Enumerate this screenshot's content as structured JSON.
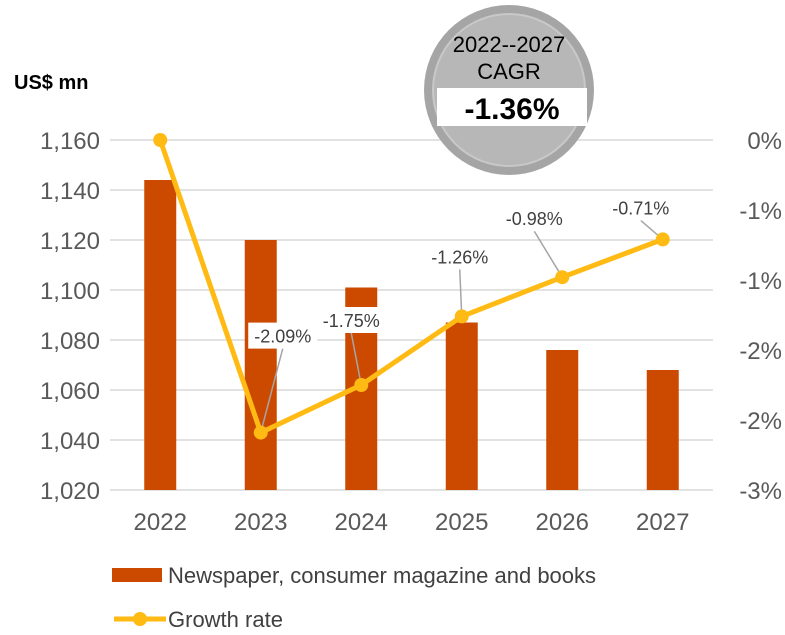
{
  "chart_data": {
    "type": "bar",
    "categories": [
      "2022",
      "2023",
      "2024",
      "2025",
      "2026",
      "2027"
    ],
    "series": [
      {
        "name": "Newspaper, consumer magazine and books",
        "type": "bar",
        "axis": "left",
        "values": [
          1144,
          1120,
          1101,
          1087,
          1076,
          1068
        ]
      },
      {
        "name": "Growth rate",
        "type": "line",
        "axis": "right",
        "values": [
          0,
          -2.09,
          -1.75,
          -1.26,
          -0.98,
          -0.71
        ],
        "data_labels": [
          "",
          "-2.09%",
          "-1.75%",
          "-1.26%",
          "-0.98%",
          "-0.71%"
        ]
      }
    ],
    "ylabel": "US$ mn",
    "ylim": [
      1020,
      1160
    ],
    "yticks": [
      "1,020",
      "1,040",
      "1,060",
      "1,080",
      "1,100",
      "1,120",
      "1,140",
      "1,160"
    ],
    "y2lim": [
      -2.5,
      0
    ],
    "y2ticks": [
      "-3%",
      "-2%",
      "-2%",
      "-1%",
      "-1%",
      "0%"
    ],
    "grid": true,
    "legend": "bottom-left",
    "annotation": {
      "title": "2022--2027",
      "subtitle": "CAGR",
      "value": "-1.36%"
    },
    "colors": {
      "bar": "#CC4A00",
      "line": "#FFBA13",
      "grid": "#D9D9D9",
      "callout": "#A5A5A5"
    }
  }
}
